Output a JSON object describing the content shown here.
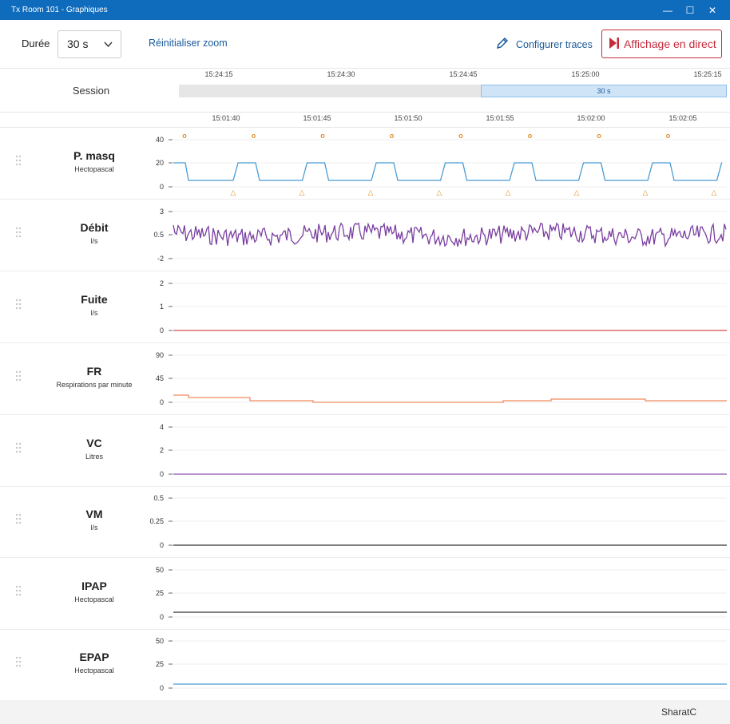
{
  "window": {
    "title": "Tx Room 101 - Graphiques",
    "minimize_glyph": "—",
    "maximize_glyph": "☐",
    "close_glyph": "✕"
  },
  "toolbar": {
    "duree_label": "Durée",
    "duree_value": "30 s",
    "reset_zoom_label": "Réinitialiser zoom",
    "configure_label": "Configurer traces",
    "live_label": "Affichage en direct"
  },
  "session": {
    "label": "Session",
    "window_label": "30 s",
    "ticks": [
      "15:24:15",
      "15:24:30",
      "15:24:45",
      "15:25:00",
      "15:25:15"
    ]
  },
  "time_axis": {
    "ticks": [
      "15:01:40",
      "15:01:45",
      "15:01:50",
      "15:01:55",
      "15:02:00",
      "15:02:05"
    ]
  },
  "panels": [
    {
      "name": "P. masq",
      "unit": "Hectopascal",
      "ticks": [
        "40",
        "20",
        "0"
      ],
      "color": "#4a9bd4"
    },
    {
      "name": "Débit",
      "unit": "l/s",
      "ticks": [
        "3",
        "0.5",
        "-2"
      ],
      "color": "#7a3fa0"
    },
    {
      "name": "Fuite",
      "unit": "l/s",
      "ticks": [
        "2",
        "1",
        "0"
      ],
      "color": "#d94a4a"
    },
    {
      "name": "FR",
      "unit": "Respirations par minute",
      "ticks": [
        "90",
        "45",
        "0"
      ],
      "color": "#f08a5d"
    },
    {
      "name": "VC",
      "unit": "Litres",
      "ticks": [
        "4",
        "2",
        "0"
      ],
      "color": "#8a4fb0"
    },
    {
      "name": "VM",
      "unit": "l/s",
      "ticks": [
        "0.5",
        "0.25",
        "0"
      ],
      "color": "#333333"
    },
    {
      "name": "IPAP",
      "unit": "Hectopascal",
      "ticks": [
        "50",
        "25",
        "0"
      ],
      "color": "#333333"
    },
    {
      "name": "EPAP",
      "unit": "Hectopascal",
      "ticks": [
        "50",
        "25",
        "0"
      ],
      "color": "#4a9bd4"
    }
  ],
  "markers": {
    "inspiration_glyph": "o",
    "expiration_glyph": "△",
    "color": "#e0902a"
  },
  "footer": {
    "user": "SharatC"
  }
}
